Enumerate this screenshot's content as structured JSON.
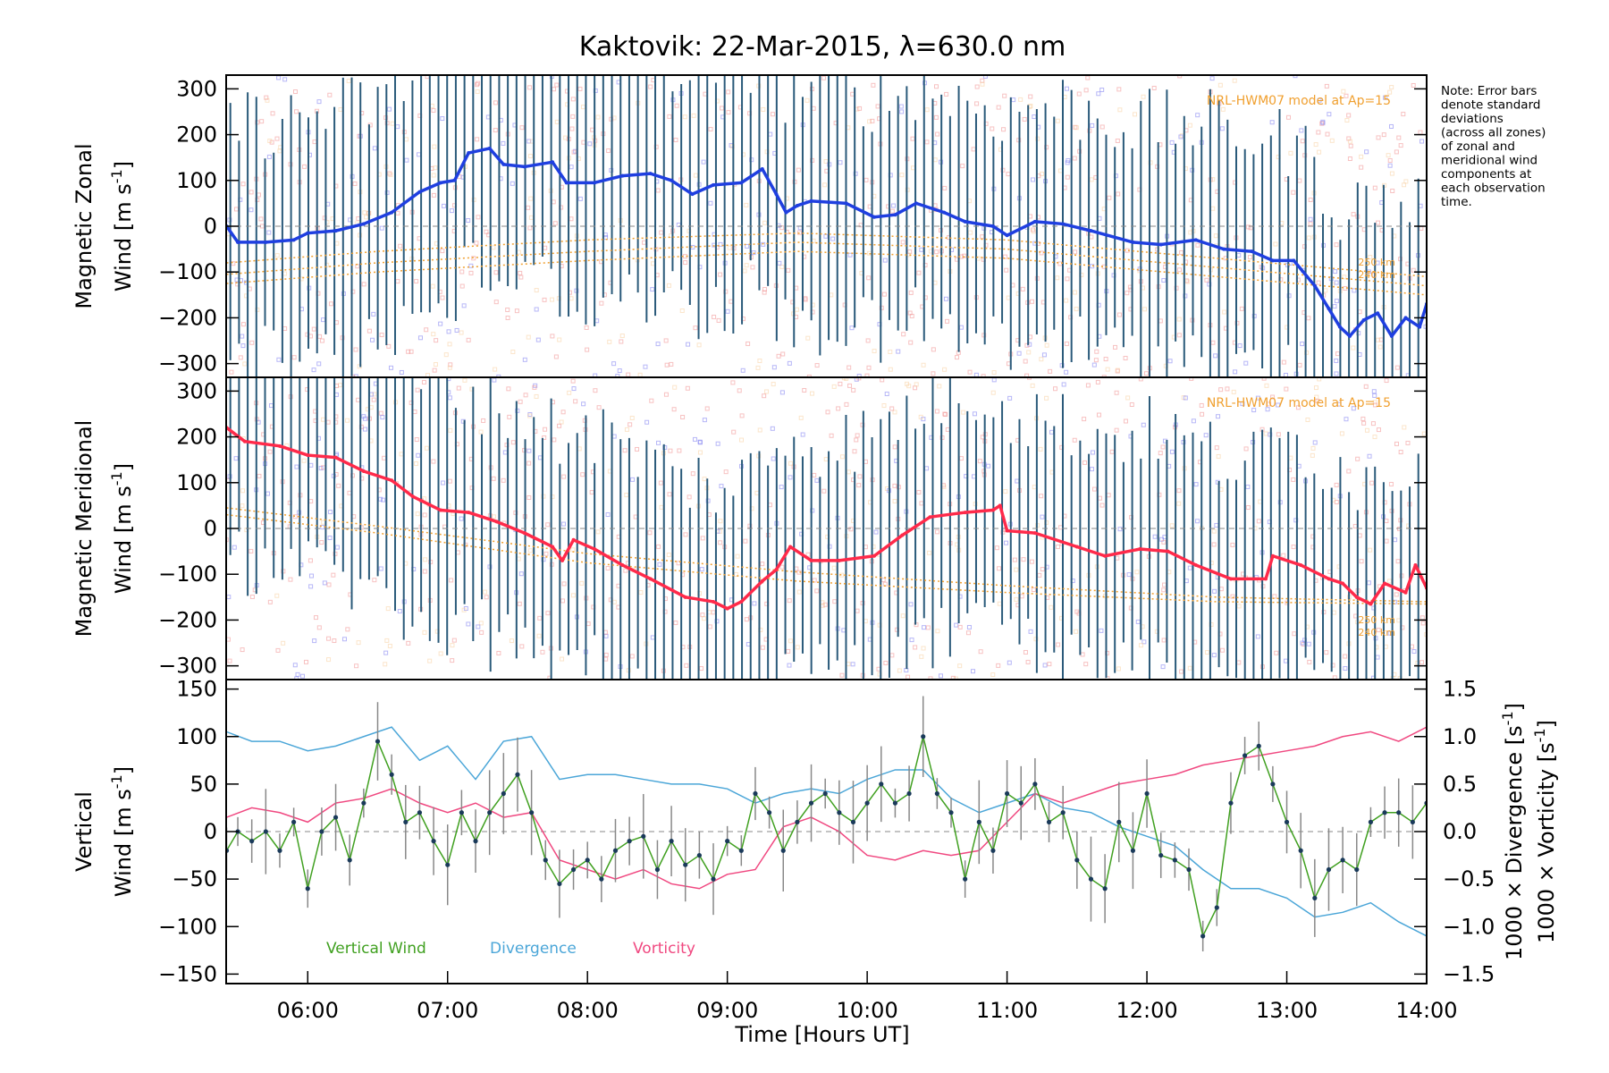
{
  "figure": {
    "title": "Kaktovik: 22-Mar-2015, λ=630.0 nm",
    "note": [
      "Note: Error bars",
      "denote standard",
      "deviations",
      "(across all zones)",
      "of zonal and",
      "meridional wind",
      "components at",
      "each observation",
      "time."
    ],
    "model_label": "NRL-HWM07 model at Ap=15",
    "xlabel": "Time [Hours UT]"
  },
  "colors": {
    "zonal": "#1f3fe0",
    "meridional": "#ff2a4a",
    "vertical": "#40a020",
    "divergence": "#4ba6d8",
    "vorticity": "#f04880",
    "model": "#f0a030",
    "errorbar": "#2a5a7a",
    "scatter_blue": "#7c7cf0",
    "scatter_red": "#f09090",
    "scatter_orange": "#f8d0a0",
    "scatter_green": "#c8f0a0"
  },
  "chart_data": [
    {
      "type": "line",
      "panel": "zonal",
      "ylabel_line1": "Magnetic Zonal",
      "ylabel_line2": "Wind [m s",
      "ylabel_sup": "-1",
      "ylim": [
        -330,
        330
      ],
      "xlim": [
        5.4167,
        14.0
      ],
      "yticks": [
        -300,
        -200,
        -100,
        0,
        100,
        200,
        300
      ],
      "ytick_labels": [
        "−300",
        "−200",
        "−100",
        "0",
        "100",
        "200",
        "300"
      ],
      "model_alt_labels": [
        "250 km",
        "240 km"
      ],
      "series": [
        {
          "x": [
            5.42,
            5.5,
            5.7,
            5.9,
            6.0,
            6.2,
            6.4,
            6.6,
            6.8,
            6.95,
            7.05,
            7.15,
            7.3,
            7.4,
            7.55,
            7.75,
            7.85,
            8.05,
            8.25,
            8.45,
            8.6,
            8.75,
            8.9,
            9.1,
            9.25,
            9.35,
            9.42,
            9.5,
            9.6,
            9.85,
            10.05,
            10.2,
            10.35,
            10.55,
            10.7,
            10.9,
            11.0,
            11.2,
            11.4,
            11.6,
            11.9,
            12.1,
            12.35,
            12.55,
            12.75,
            12.9,
            13.05,
            13.2,
            13.3,
            13.38,
            13.45,
            13.55,
            13.65,
            13.75,
            13.85,
            13.95,
            14.0
          ],
          "y": [
            0,
            -35,
            -35,
            -30,
            -15,
            -10,
            5,
            30,
            75,
            95,
            100,
            160,
            170,
            135,
            130,
            140,
            95,
            95,
            110,
            115,
            100,
            70,
            90,
            95,
            125,
            70,
            30,
            45,
            55,
            50,
            20,
            25,
            50,
            30,
            10,
            0,
            -20,
            10,
            5,
            -10,
            -35,
            -40,
            -30,
            -50,
            -55,
            -75,
            -75,
            -130,
            -180,
            -220,
            -240,
            -205,
            -190,
            -240,
            -200,
            -220,
            -170
          ]
        }
      ],
      "models": [
        {
          "x": [
            5.42,
            6.5,
            8.0,
            9.5,
            11.0,
            12.5,
            14.0
          ],
          "y": [
            -125,
            -100,
            -75,
            -55,
            -70,
            -110,
            -150
          ]
        },
        {
          "x": [
            5.42,
            6.5,
            8.0,
            9.5,
            11.0,
            12.5,
            14.0
          ],
          "y": [
            -105,
            -80,
            -55,
            -35,
            -50,
            -90,
            -130
          ]
        },
        {
          "x": [
            5.42,
            6.5,
            8.0,
            9.5,
            11.0,
            12.5,
            14.0
          ],
          "y": [
            -80,
            -55,
            -30,
            -15,
            -30,
            -70,
            -110
          ]
        }
      ]
    },
    {
      "type": "line",
      "panel": "meridional",
      "ylabel_line1": "Magnetic Meridional",
      "ylabel_line2": "Wind [m s",
      "ylabel_sup": "-1",
      "ylim": [
        -330,
        330
      ],
      "xlim": [
        5.4167,
        14.0
      ],
      "yticks": [
        -300,
        -200,
        -100,
        0,
        100,
        200,
        300
      ],
      "ytick_labels": [
        "−300",
        "−200",
        "−100",
        "0",
        "100",
        "200",
        "300"
      ],
      "model_alt_labels": [
        "250 km",
        "240 km"
      ],
      "series": [
        {
          "x": [
            5.42,
            5.55,
            5.8,
            6.0,
            6.2,
            6.4,
            6.6,
            6.75,
            6.95,
            7.15,
            7.35,
            7.55,
            7.75,
            7.82,
            7.9,
            8.05,
            8.25,
            8.45,
            8.7,
            8.9,
            9.0,
            9.1,
            9.25,
            9.35,
            9.45,
            9.6,
            9.8,
            10.05,
            10.25,
            10.45,
            10.7,
            10.9,
            10.95,
            11.0,
            11.2,
            11.5,
            11.7,
            11.95,
            12.15,
            12.35,
            12.6,
            12.85,
            12.9,
            13.1,
            13.3,
            13.4,
            13.5,
            13.6,
            13.7,
            13.85,
            13.92,
            14.0
          ],
          "y": [
            220,
            190,
            180,
            160,
            155,
            125,
            105,
            70,
            40,
            35,
            15,
            -10,
            -40,
            -70,
            -25,
            -45,
            -80,
            -110,
            -150,
            -160,
            -175,
            -160,
            -115,
            -90,
            -40,
            -70,
            -70,
            -60,
            -15,
            25,
            35,
            40,
            50,
            -5,
            -10,
            -40,
            -60,
            -45,
            -50,
            -80,
            -110,
            -110,
            -60,
            -80,
            -110,
            -120,
            -150,
            -165,
            -120,
            -140,
            -80,
            -130
          ]
        }
      ],
      "models": [
        {
          "x": [
            5.42,
            6.5,
            8.0,
            9.5,
            11.0,
            12.5,
            14.0
          ],
          "y": [
            45,
            5,
            -55,
            -95,
            -125,
            -150,
            -160
          ]
        },
        {
          "x": [
            5.42,
            6.5,
            8.0,
            9.5,
            11.0,
            12.5,
            14.0
          ],
          "y": [
            30,
            -10,
            -75,
            -115,
            -140,
            -160,
            -165
          ]
        }
      ]
    },
    {
      "type": "line",
      "panel": "vertical",
      "ylabel_line1": "Vertical",
      "ylabel_line2": "Wind [m s",
      "ylabel_sup": "-1",
      "ylim": [
        -160,
        160
      ],
      "xlim": [
        5.4167,
        14.0
      ],
      "yticks": [
        -150,
        -100,
        -50,
        0,
        50,
        100,
        150
      ],
      "ytick_labels": [
        "−150",
        "−100",
        "−50",
        "0",
        "50",
        "100",
        "150"
      ],
      "right_yticks": [
        -1.5,
        -1.0,
        -0.5,
        0.0,
        0.5,
        1.0,
        1.5
      ],
      "right_ytick_labels": [
        "−1.5",
        "−1.0",
        "−0.5",
        "0.0",
        "0.5",
        "1.0",
        "1.5"
      ],
      "right_label_divergence": "1000 × Divergence [s",
      "right_label_vorticity": "1000 × Vorticity [s",
      "right_label_sup": "-1",
      "xticks": [
        6,
        7,
        8,
        9,
        10,
        11,
        12,
        13,
        14
      ],
      "xtick_labels": [
        "06:00",
        "07:00",
        "08:00",
        "09:00",
        "10:00",
        "11:00",
        "12:00",
        "13:00",
        "14:00"
      ],
      "legend": [
        "Vertical Wind",
        "Divergence",
        "Vorticity"
      ],
      "series": [
        {
          "name": "Vertical Wind",
          "x": [
            5.42,
            5.5,
            5.6,
            5.7,
            5.8,
            5.9,
            6.0,
            6.1,
            6.2,
            6.3,
            6.4,
            6.5,
            6.6,
            6.7,
            6.8,
            6.9,
            7.0,
            7.1,
            7.2,
            7.3,
            7.4,
            7.5,
            7.6,
            7.7,
            7.8,
            7.9,
            8.0,
            8.1,
            8.2,
            8.3,
            8.4,
            8.5,
            8.6,
            8.7,
            8.8,
            8.9,
            9.0,
            9.1,
            9.2,
            9.3,
            9.4,
            9.5,
            9.6,
            9.7,
            9.8,
            9.9,
            10.0,
            10.1,
            10.2,
            10.3,
            10.4,
            10.5,
            10.6,
            10.7,
            10.8,
            10.9,
            11.0,
            11.1,
            11.2,
            11.3,
            11.4,
            11.5,
            11.6,
            11.7,
            11.8,
            11.9,
            12.0,
            12.1,
            12.2,
            12.3,
            12.4,
            12.5,
            12.6,
            12.7,
            12.8,
            12.9,
            13.0,
            13.1,
            13.2,
            13.3,
            13.4,
            13.5,
            13.6,
            13.7,
            13.8,
            13.9,
            14.0
          ],
          "y": [
            -20,
            0,
            -10,
            0,
            -20,
            10,
            -60,
            0,
            15,
            -30,
            30,
            95,
            60,
            10,
            20,
            -10,
            -35,
            20,
            -10,
            20,
            40,
            60,
            20,
            -30,
            -55,
            -40,
            -30,
            -50,
            -20,
            -10,
            -5,
            -40,
            -10,
            -35,
            -25,
            -50,
            -10,
            -20,
            40,
            20,
            -20,
            10,
            30,
            40,
            20,
            10,
            30,
            50,
            30,
            40,
            100,
            40,
            20,
            -50,
            10,
            -20,
            40,
            30,
            50,
            10,
            20,
            -30,
            -50,
            -60,
            10,
            -20,
            40,
            -25,
            -30,
            -40,
            -110,
            -80,
            30,
            80,
            90,
            50,
            10,
            -20,
            -70,
            -40,
            -30,
            -40,
            10,
            20,
            20,
            10,
            30
          ]
        },
        {
          "name": "Divergence",
          "axis": "right",
          "x": [
            5.42,
            5.6,
            5.8,
            6.0,
            6.2,
            6.4,
            6.6,
            6.8,
            7.0,
            7.2,
            7.4,
            7.6,
            7.8,
            8.0,
            8.2,
            8.4,
            8.6,
            8.8,
            9.0,
            9.2,
            9.4,
            9.6,
            9.8,
            10.0,
            10.2,
            10.4,
            10.6,
            10.8,
            11.0,
            11.2,
            11.4,
            11.6,
            11.8,
            12.0,
            12.2,
            12.4,
            12.6,
            12.8,
            13.0,
            13.2,
            13.4,
            13.6,
            13.8,
            14.0
          ],
          "y": [
            1.05,
            0.95,
            0.95,
            0.85,
            0.9,
            1.0,
            1.1,
            0.75,
            0.9,
            0.55,
            0.95,
            1.0,
            0.55,
            0.6,
            0.6,
            0.55,
            0.5,
            0.5,
            0.45,
            0.3,
            0.4,
            0.45,
            0.4,
            0.55,
            0.65,
            0.65,
            0.35,
            0.2,
            0.3,
            0.4,
            0.25,
            0.2,
            0.05,
            -0.05,
            -0.15,
            -0.4,
            -0.6,
            -0.6,
            -0.7,
            -0.9,
            -0.85,
            -0.75,
            -0.95,
            -1.1
          ]
        },
        {
          "name": "Vorticity",
          "axis": "right",
          "x": [
            5.42,
            5.6,
            5.8,
            6.0,
            6.2,
            6.4,
            6.6,
            6.8,
            7.0,
            7.2,
            7.4,
            7.6,
            7.8,
            8.0,
            8.2,
            8.4,
            8.6,
            8.8,
            9.0,
            9.2,
            9.4,
            9.6,
            9.8,
            10.0,
            10.2,
            10.4,
            10.6,
            10.8,
            11.0,
            11.2,
            11.4,
            11.6,
            11.8,
            12.0,
            12.2,
            12.4,
            12.6,
            12.8,
            13.0,
            13.2,
            13.4,
            13.6,
            13.8,
            14.0
          ],
          "y": [
            0.15,
            0.25,
            0.2,
            0.1,
            0.3,
            0.35,
            0.45,
            0.3,
            0.2,
            0.3,
            0.15,
            0.2,
            -0.3,
            -0.4,
            -0.5,
            -0.4,
            -0.55,
            -0.6,
            -0.45,
            -0.4,
            0.05,
            0.15,
            0.0,
            -0.25,
            -0.3,
            -0.2,
            -0.25,
            -0.2,
            0.1,
            0.4,
            0.3,
            0.4,
            0.5,
            0.55,
            0.6,
            0.7,
            0.75,
            0.8,
            0.85,
            0.9,
            1.0,
            1.05,
            0.95,
            1.1
          ]
        }
      ]
    }
  ]
}
